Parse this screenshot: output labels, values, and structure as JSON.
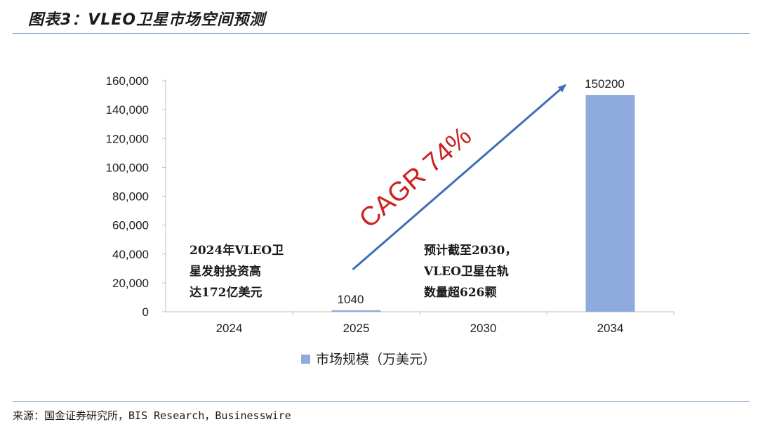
{
  "title": "图表3：VLEO卫星市场空间预测",
  "source": "来源：国金证券研究所，BIS Research，Businesswire",
  "chart_data": {
    "type": "bar",
    "categories": [
      "2024",
      "2025",
      "2030",
      "2034"
    ],
    "series": [
      {
        "name": "市场规模（万美元）",
        "values": [
          null,
          1040,
          null,
          150200
        ],
        "data_labels": [
          "",
          "1040",
          "",
          "150200"
        ],
        "color": "#8faadc"
      }
    ],
    "ylim": [
      0,
      160000
    ],
    "yticks": [
      0,
      20000,
      40000,
      60000,
      80000,
      100000,
      120000,
      140000,
      160000
    ],
    "ytick_labels": [
      "0",
      "20,000",
      "40,000",
      "60,000",
      "80,000",
      "100,000",
      "120,000",
      "140,000",
      "160,000"
    ],
    "legend": {
      "position": "bottom",
      "label": "市场规模（万美元）"
    },
    "annotations": [
      {
        "lines": [
          "2024年VLEO卫",
          "星发射投资高",
          "达172亿美元"
        ]
      },
      {
        "lines": [
          "预计截至2030，",
          "VLEO卫星在轨",
          "数量超626颗"
        ]
      },
      {
        "text": "CAGR 74%",
        "color": "#cc2222"
      }
    ],
    "arrow": {
      "from": {
        "x": "2025",
        "y": 1040
      },
      "to": {
        "x": "2034",
        "y": 150200
      },
      "color": "#3f6fb5"
    },
    "grid": false
  }
}
